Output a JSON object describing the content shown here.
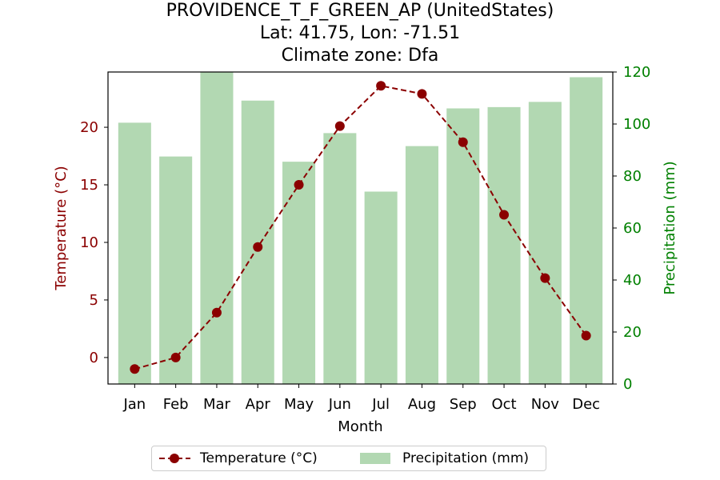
{
  "title": [
    "PROVIDENCE_T_F_GREEN_AP (UnitedStates)",
    "Lat: 41.75, Lon: -71.51",
    "Climate zone: Dfa"
  ],
  "colors": {
    "temperature": "#8b0000",
    "precipitation": "#b2d8b2",
    "precip_axis": "#008000"
  },
  "chart_data": {
    "type": "bar+line",
    "categories": [
      "Jan",
      "Feb",
      "Mar",
      "Apr",
      "May",
      "Jun",
      "Jul",
      "Aug",
      "Sep",
      "Oct",
      "Nov",
      "Dec"
    ],
    "xlabel": "Month",
    "series": [
      {
        "name": "Temperature (°C)",
        "axis": "left",
        "type": "line",
        "values": [
          -1.0,
          0.0,
          3.9,
          9.6,
          15.0,
          20.1,
          23.6,
          22.9,
          18.7,
          12.4,
          6.9,
          1.9
        ]
      },
      {
        "name": "Precipitation (mm)",
        "axis": "right",
        "type": "bar",
        "values": [
          100.5,
          87.5,
          124.5,
          109,
          85.5,
          96.5,
          74,
          91.5,
          106,
          106.5,
          108.5,
          118
        ]
      }
    ],
    "ylabel_left": "Temperature (°C)",
    "ylabel_right": "Precipitation (mm)",
    "ylim_left": [
      -2.3,
      24.8
    ],
    "ylim_right": [
      0,
      120.0
    ],
    "yticks_left": [
      0,
      5,
      10,
      15,
      20
    ],
    "yticks_right": [
      0,
      20,
      40,
      60,
      80,
      100,
      120
    ],
    "legend_position": "bottom-center",
    "grid": false
  }
}
